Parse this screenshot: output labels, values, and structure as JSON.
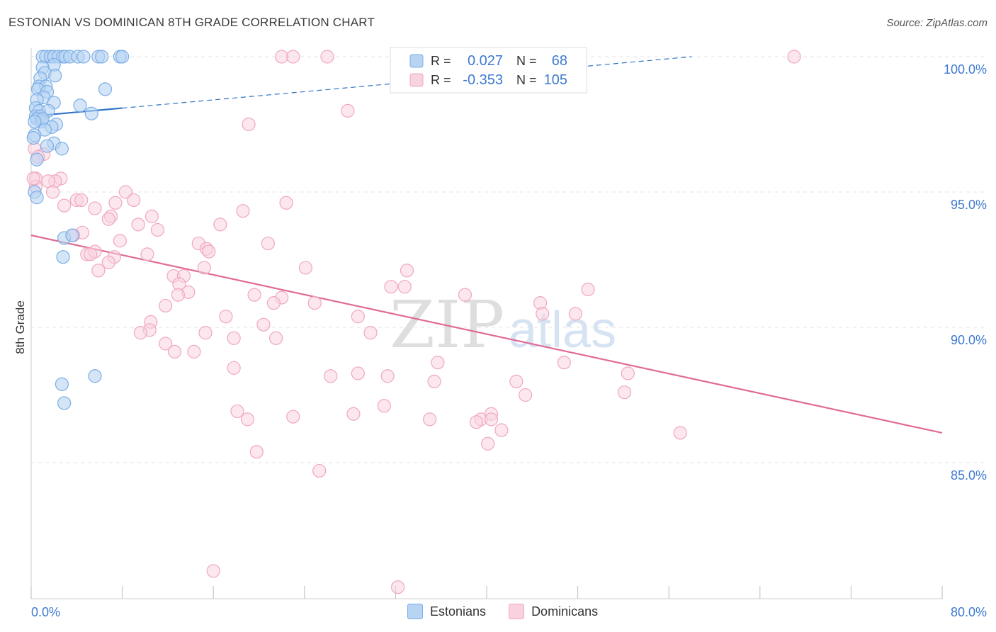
{
  "title": "ESTONIAN VS DOMINICAN 8TH GRADE CORRELATION CHART",
  "source": "Source: ZipAtlas.com",
  "watermark": {
    "zip": "ZIP",
    "atlas": "atlas"
  },
  "colors": {
    "estonians": "#7baee6",
    "estonians_fill": "#b8d4f3",
    "estonians_line": "#2f74c8",
    "dominicans": "#f1a7bf",
    "dominicans_fill": "#f8d3df",
    "dominicans_line": "#e06b95",
    "axis_text": "#3f7ad1",
    "grid": "#e3e3e3"
  },
  "legend_box": {
    "rows": [
      {
        "r_label": "R =",
        "r_value": "0.027",
        "n_label": "N =",
        "n_value": "68"
      },
      {
        "r_label": "R =",
        "r_value": "-0.353",
        "n_label": "N =",
        "n_value": "105"
      }
    ]
  },
  "legend_bottom": {
    "estonians": "Estonians",
    "dominicans": "Dominicans"
  },
  "chart_data": {
    "type": "scatter",
    "title": "ESTONIAN VS DOMINICAN 8TH GRADE CORRELATION CHART",
    "ylabel": "8th Grade",
    "xlim": [
      0,
      80
    ],
    "ylim": [
      80.3,
      100.5
    ],
    "x_tick_labels": [
      "0.0%",
      "80.0%"
    ],
    "y_ticks": [
      85,
      90,
      95,
      100
    ],
    "y_tick_labels": [
      "85.0%",
      "90.0%",
      "95.0%",
      "100.0%"
    ],
    "grid": true,
    "series": [
      {
        "name": "Estonians",
        "trend": {
          "x": [
            0,
            8,
            58
          ],
          "y": [
            97.8,
            98.1,
            100.0
          ]
        },
        "points": [
          [
            1.0,
            100
          ],
          [
            1.3,
            100
          ],
          [
            1.7,
            100
          ],
          [
            2.0,
            100
          ],
          [
            2.4,
            100
          ],
          [
            2.8,
            100
          ],
          [
            3.0,
            100
          ],
          [
            3.4,
            100
          ],
          [
            4.1,
            100
          ],
          [
            4.6,
            100
          ],
          [
            5.9,
            100
          ],
          [
            6.2,
            100
          ],
          [
            7.8,
            100
          ],
          [
            8.0,
            100
          ],
          [
            2.0,
            99.7
          ],
          [
            1.0,
            99.6
          ],
          [
            1.2,
            99.4
          ],
          [
            0.8,
            99.2
          ],
          [
            2.1,
            99.3
          ],
          [
            0.7,
            98.9
          ],
          [
            1.3,
            98.9
          ],
          [
            0.6,
            98.8
          ],
          [
            1.4,
            98.7
          ],
          [
            6.5,
            98.8
          ],
          [
            1.1,
            98.5
          ],
          [
            0.5,
            98.4
          ],
          [
            2.0,
            98.3
          ],
          [
            4.3,
            98.2
          ],
          [
            0.4,
            98.1
          ],
          [
            0.7,
            98.0
          ],
          [
            1.5,
            98.0
          ],
          [
            5.3,
            97.9
          ],
          [
            0.4,
            97.8
          ],
          [
            0.8,
            97.8
          ],
          [
            0.5,
            97.7
          ],
          [
            0.9,
            97.6
          ],
          [
            1.0,
            97.7
          ],
          [
            0.3,
            97.6
          ],
          [
            2.2,
            97.5
          ],
          [
            1.8,
            97.4
          ],
          [
            1.2,
            97.3
          ],
          [
            0.3,
            97.1
          ],
          [
            0.2,
            97.0
          ],
          [
            2.0,
            96.8
          ],
          [
            1.4,
            96.7
          ],
          [
            2.7,
            96.6
          ],
          [
            0.5,
            96.2
          ],
          [
            0.3,
            95.0
          ],
          [
            0.5,
            94.8
          ],
          [
            2.9,
            93.3
          ],
          [
            3.6,
            93.4
          ],
          [
            2.8,
            92.6
          ],
          [
            5.6,
            88.2
          ],
          [
            2.7,
            87.9
          ],
          [
            2.9,
            87.2
          ]
        ]
      },
      {
        "name": "Dominicans",
        "trend": {
          "x": [
            0,
            80
          ],
          "y": [
            93.4,
            86.1
          ]
        },
        "points": [
          [
            22,
            100
          ],
          [
            23,
            100
          ],
          [
            26,
            100
          ],
          [
            33,
            100
          ],
          [
            38,
            100
          ],
          [
            67,
            100
          ],
          [
            27.8,
            98.0
          ],
          [
            19.1,
            97.5
          ],
          [
            0.3,
            96.6
          ],
          [
            1.1,
            96.4
          ],
          [
            0.6,
            96.3
          ],
          [
            0.4,
            95.5
          ],
          [
            2.6,
            95.5
          ],
          [
            2.1,
            95.4
          ],
          [
            1.5,
            95.4
          ],
          [
            0.4,
            95.2
          ],
          [
            1.9,
            95.0
          ],
          [
            8.3,
            95.0
          ],
          [
            4.0,
            94.7
          ],
          [
            4.4,
            94.7
          ],
          [
            9.0,
            94.7
          ],
          [
            22.4,
            94.6
          ],
          [
            7.4,
            94.6
          ],
          [
            2.9,
            94.5
          ],
          [
            5.6,
            94.4
          ],
          [
            18.6,
            94.3
          ],
          [
            7.0,
            94.1
          ],
          [
            10.6,
            94.1
          ],
          [
            6.8,
            94.0
          ],
          [
            9.4,
            93.8
          ],
          [
            16.6,
            93.8
          ],
          [
            11.1,
            93.6
          ],
          [
            4.5,
            93.5
          ],
          [
            3.7,
            93.4
          ],
          [
            7.8,
            93.2
          ],
          [
            14.7,
            93.1
          ],
          [
            20.8,
            93.1
          ],
          [
            15.4,
            92.9
          ],
          [
            4.9,
            92.7
          ],
          [
            5.6,
            92.8
          ],
          [
            15.6,
            92.8
          ],
          [
            10.2,
            92.7
          ],
          [
            5.2,
            92.7
          ],
          [
            7.3,
            92.6
          ],
          [
            6.8,
            92.4
          ],
          [
            15.2,
            92.2
          ],
          [
            24.1,
            92.2
          ],
          [
            5.9,
            92.1
          ],
          [
            33.0,
            92.1
          ],
          [
            12.5,
            91.9
          ],
          [
            13.4,
            91.9
          ],
          [
            13.0,
            91.6
          ],
          [
            31.6,
            91.5
          ],
          [
            32.8,
            91.5
          ],
          [
            13.8,
            91.3
          ],
          [
            12.9,
            91.2
          ],
          [
            19.6,
            91.2
          ],
          [
            22.0,
            91.1
          ],
          [
            38.1,
            91.2
          ],
          [
            48.9,
            91.4
          ],
          [
            21.3,
            90.9
          ],
          [
            24.9,
            90.9
          ],
          [
            11.8,
            90.8
          ],
          [
            44.7,
            90.9
          ],
          [
            44.9,
            90.5
          ],
          [
            47.8,
            90.5
          ],
          [
            17.1,
            90.4
          ],
          [
            10.5,
            90.2
          ],
          [
            28.7,
            90.4
          ],
          [
            20.4,
            90.1
          ],
          [
            10.4,
            89.9
          ],
          [
            9.6,
            89.8
          ],
          [
            15.3,
            89.8
          ],
          [
            29.8,
            89.8
          ],
          [
            17.8,
            89.6
          ],
          [
            21.5,
            89.6
          ],
          [
            11.8,
            89.4
          ],
          [
            12.6,
            89.1
          ],
          [
            14.3,
            89.1
          ],
          [
            35.7,
            88.7
          ],
          [
            46.8,
            88.7
          ],
          [
            17.8,
            88.5
          ],
          [
            26.3,
            88.2
          ],
          [
            28.7,
            88.3
          ],
          [
            31.3,
            88.2
          ],
          [
            52.4,
            88.3
          ],
          [
            35.4,
            88.0
          ],
          [
            42.6,
            88.0
          ],
          [
            52.1,
            87.6
          ],
          [
            43.4,
            87.5
          ],
          [
            31.0,
            87.1
          ],
          [
            18.1,
            86.9
          ],
          [
            23.0,
            86.7
          ],
          [
            28.3,
            86.8
          ],
          [
            35.0,
            86.6
          ],
          [
            39.5,
            86.6
          ],
          [
            39.1,
            86.5
          ],
          [
            40.4,
            86.8
          ],
          [
            40.4,
            86.6
          ],
          [
            41.3,
            86.2
          ],
          [
            19.0,
            86.6
          ],
          [
            57.0,
            86.1
          ],
          [
            40.1,
            85.7
          ],
          [
            19.8,
            85.4
          ],
          [
            25.3,
            84.7
          ],
          [
            16.0,
            81.0
          ],
          [
            32.2,
            80.4
          ],
          [
            0.2,
            95.5
          ]
        ]
      }
    ]
  }
}
